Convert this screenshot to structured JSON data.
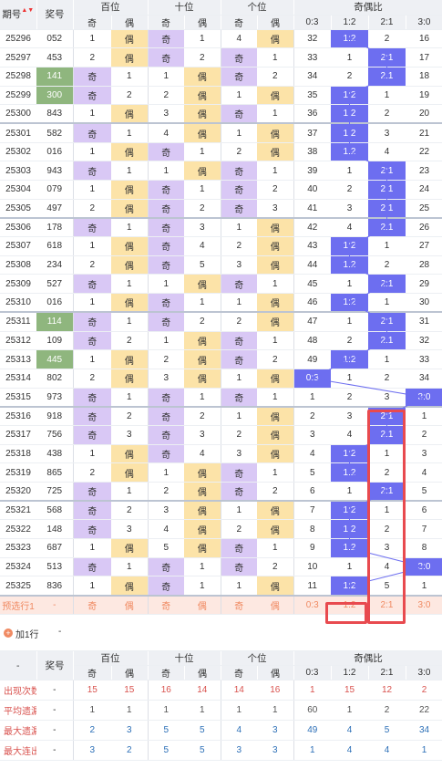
{
  "header": {
    "issue": "期号",
    "number": "奖号",
    "bai": "百位",
    "shi": "十位",
    "ge": "个位",
    "ratio": "奇偶比",
    "ji": "奇",
    "ou": "偶",
    "r0": "0:3",
    "r1": "1:2",
    "r2": "2:1",
    "r3": "3:0"
  },
  "rows": [
    {
      "issue": "25296",
      "num": "052",
      "b": [
        "1",
        "偶"
      ],
      "s": [
        "奇",
        "1"
      ],
      "g": [
        "4",
        "偶"
      ],
      "r": [
        "32",
        "1:2",
        "2",
        "16"
      ],
      "hl": 1,
      "bt": "ou",
      "st": "ji",
      "gt": "ou"
    },
    {
      "issue": "25297",
      "num": "453",
      "b": [
        "2",
        "偶"
      ],
      "s": [
        "奇",
        "2"
      ],
      "g": [
        "奇",
        "1"
      ],
      "r": [
        "33",
        "1",
        "2:1",
        "17"
      ],
      "hl": 2,
      "bt": "ou",
      "st": "ji",
      "gt": "ji"
    },
    {
      "issue": "25298",
      "num": "141",
      "b": [
        "奇",
        "1"
      ],
      "s": [
        "1",
        "偶"
      ],
      "g": [
        "奇",
        "2"
      ],
      "r": [
        "34",
        "2",
        "2:1",
        "18"
      ],
      "hl": 2,
      "bt": "ji",
      "st": "ou",
      "gt": "ji",
      "green": true
    },
    {
      "issue": "25299",
      "num": "300",
      "b": [
        "奇",
        "2"
      ],
      "s": [
        "2",
        "偶"
      ],
      "g": [
        "1",
        "偶"
      ],
      "r": [
        "35",
        "1:2",
        "1",
        "19"
      ],
      "hl": 1,
      "bt": "ji",
      "st": "ou",
      "gt": "ou",
      "green": true
    },
    {
      "issue": "25300",
      "num": "843",
      "b": [
        "1",
        "偶"
      ],
      "s": [
        "3",
        "偶"
      ],
      "g": [
        "奇",
        "1"
      ],
      "r": [
        "36",
        "1:2",
        "2",
        "20"
      ],
      "hl": 1,
      "bt": "ou",
      "st": "ou",
      "gt": "ji"
    },
    {
      "issue": "25301",
      "num": "582",
      "b": [
        "奇",
        "1"
      ],
      "s": [
        "4",
        "偶"
      ],
      "g": [
        "1",
        "偶"
      ],
      "r": [
        "37",
        "1:2",
        "3",
        "21"
      ],
      "hl": 1,
      "bt": "ji",
      "st": "ou",
      "gt": "ou"
    },
    {
      "issue": "25302",
      "num": "016",
      "b": [
        "1",
        "偶"
      ],
      "s": [
        "奇",
        "1"
      ],
      "g": [
        "2",
        "偶"
      ],
      "r": [
        "38",
        "1:2",
        "4",
        "22"
      ],
      "hl": 1,
      "bt": "ou",
      "st": "ji",
      "gt": "ou"
    },
    {
      "issue": "25303",
      "num": "943",
      "b": [
        "奇",
        "1"
      ],
      "s": [
        "1",
        "偶"
      ],
      "g": [
        "奇",
        "1"
      ],
      "r": [
        "39",
        "1",
        "2:1",
        "23"
      ],
      "hl": 2,
      "bt": "ji",
      "st": "ou",
      "gt": "ji"
    },
    {
      "issue": "25304",
      "num": "079",
      "b": [
        "1",
        "偶"
      ],
      "s": [
        "奇",
        "1"
      ],
      "g": [
        "奇",
        "2"
      ],
      "r": [
        "40",
        "2",
        "2:1",
        "24"
      ],
      "hl": 2,
      "bt": "ou",
      "st": "ji",
      "gt": "ji"
    },
    {
      "issue": "25305",
      "num": "497",
      "b": [
        "2",
        "偶"
      ],
      "s": [
        "奇",
        "2"
      ],
      "g": [
        "奇",
        "3"
      ],
      "r": [
        "41",
        "3",
        "2:1",
        "25"
      ],
      "hl": 2,
      "bt": "ou",
      "st": "ji",
      "gt": "ji"
    },
    {
      "issue": "25306",
      "num": "178",
      "b": [
        "奇",
        "1"
      ],
      "s": [
        "奇",
        "3"
      ],
      "g": [
        "1",
        "偶"
      ],
      "r": [
        "42",
        "4",
        "2:1",
        "26"
      ],
      "hl": 2,
      "bt": "ji",
      "st": "ji",
      "gt": "ou"
    },
    {
      "issue": "25307",
      "num": "618",
      "b": [
        "1",
        "偶"
      ],
      "s": [
        "奇",
        "4"
      ],
      "g": [
        "2",
        "偶"
      ],
      "r": [
        "43",
        "1:2",
        "1",
        "27"
      ],
      "hl": 1,
      "bt": "ou",
      "st": "ji",
      "gt": "ou"
    },
    {
      "issue": "25308",
      "num": "234",
      "b": [
        "2",
        "偶"
      ],
      "s": [
        "奇",
        "5"
      ],
      "g": [
        "3",
        "偶"
      ],
      "r": [
        "44",
        "1:2",
        "2",
        "28"
      ],
      "hl": 1,
      "bt": "ou",
      "st": "ji",
      "gt": "ou"
    },
    {
      "issue": "25309",
      "num": "527",
      "b": [
        "奇",
        "1"
      ],
      "s": [
        "1",
        "偶"
      ],
      "g": [
        "奇",
        "1"
      ],
      "r": [
        "45",
        "1",
        "2:1",
        "29"
      ],
      "hl": 2,
      "bt": "ji",
      "st": "ou",
      "gt": "ji"
    },
    {
      "issue": "25310",
      "num": "016",
      "b": [
        "1",
        "偶"
      ],
      "s": [
        "奇",
        "1"
      ],
      "g": [
        "1",
        "偶"
      ],
      "r": [
        "46",
        "1:2",
        "1",
        "30"
      ],
      "hl": 1,
      "bt": "ou",
      "st": "ji",
      "gt": "ou"
    },
    {
      "issue": "25311",
      "num": "114",
      "b": [
        "奇",
        "1"
      ],
      "s": [
        "奇",
        "2"
      ],
      "g": [
        "2",
        "偶"
      ],
      "r": [
        "47",
        "1",
        "2:1",
        "31"
      ],
      "hl": 2,
      "bt": "ji",
      "st": "ji",
      "gt": "ou",
      "green": true
    },
    {
      "issue": "25312",
      "num": "109",
      "b": [
        "奇",
        "2"
      ],
      "s": [
        "1",
        "偶"
      ],
      "g": [
        "奇",
        "1"
      ],
      "r": [
        "48",
        "2",
        "2:1",
        "32"
      ],
      "hl": 2,
      "bt": "ji",
      "st": "ou",
      "gt": "ji"
    },
    {
      "issue": "25313",
      "num": "445",
      "b": [
        "1",
        "偶"
      ],
      "s": [
        "2",
        "偶"
      ],
      "g": [
        "奇",
        "2"
      ],
      "r": [
        "49",
        "1:2",
        "1",
        "33"
      ],
      "hl": 1,
      "bt": "ou",
      "st": "ou",
      "gt": "ji",
      "green": true
    },
    {
      "issue": "25314",
      "num": "802",
      "b": [
        "2",
        "偶"
      ],
      "s": [
        "3",
        "偶"
      ],
      "g": [
        "1",
        "偶"
      ],
      "r": [
        "0:3",
        "1",
        "2",
        "34"
      ],
      "hl": 0,
      "bt": "ou",
      "st": "ou",
      "gt": "ou"
    },
    {
      "issue": "25315",
      "num": "973",
      "b": [
        "奇",
        "1"
      ],
      "s": [
        "奇",
        "1"
      ],
      "g": [
        "奇",
        "1"
      ],
      "r": [
        "1",
        "2",
        "3",
        "3:0"
      ],
      "hl": 3,
      "bt": "ji",
      "st": "ji",
      "gt": "ji"
    },
    {
      "issue": "25316",
      "num": "918",
      "b": [
        "奇",
        "2"
      ],
      "s": [
        "奇",
        "2"
      ],
      "g": [
        "1",
        "偶"
      ],
      "r": [
        "2",
        "3",
        "2:1",
        "1"
      ],
      "hl": 2,
      "bt": "ji",
      "st": "ji",
      "gt": "ou"
    },
    {
      "issue": "25317",
      "num": "756",
      "b": [
        "奇",
        "3"
      ],
      "s": [
        "奇",
        "3"
      ],
      "g": [
        "2",
        "偶"
      ],
      "r": [
        "3",
        "4",
        "2:1",
        "2"
      ],
      "hl": 2,
      "bt": "ji",
      "st": "ji",
      "gt": "ou"
    },
    {
      "issue": "25318",
      "num": "438",
      "b": [
        "1",
        "偶"
      ],
      "s": [
        "奇",
        "4"
      ],
      "g": [
        "3",
        "偶"
      ],
      "r": [
        "4",
        "1:2",
        "1",
        "3"
      ],
      "hl": 1,
      "bt": "ou",
      "st": "ji",
      "gt": "ou"
    },
    {
      "issue": "25319",
      "num": "865",
      "b": [
        "2",
        "偶"
      ],
      "s": [
        "1",
        "偶"
      ],
      "g": [
        "奇",
        "1"
      ],
      "r": [
        "5",
        "1:2",
        "2",
        "4"
      ],
      "hl": 1,
      "bt": "ou",
      "st": "ou",
      "gt": "ji"
    },
    {
      "issue": "25320",
      "num": "725",
      "b": [
        "奇",
        "1"
      ],
      "s": [
        "2",
        "偶"
      ],
      "g": [
        "奇",
        "2"
      ],
      "r": [
        "6",
        "1",
        "2:1",
        "5"
      ],
      "hl": 2,
      "bt": "ji",
      "st": "ou",
      "gt": "ji"
    },
    {
      "issue": "25321",
      "num": "568",
      "b": [
        "奇",
        "2"
      ],
      "s": [
        "3",
        "偶"
      ],
      "g": [
        "1",
        "偶"
      ],
      "r": [
        "7",
        "1:2",
        "1",
        "6"
      ],
      "hl": 1,
      "bt": "ji",
      "st": "ou",
      "gt": "ou"
    },
    {
      "issue": "25322",
      "num": "148",
      "b": [
        "奇",
        "3"
      ],
      "s": [
        "4",
        "偶"
      ],
      "g": [
        "2",
        "偶"
      ],
      "r": [
        "8",
        "1:2",
        "2",
        "7"
      ],
      "hl": 1,
      "bt": "ji",
      "st": "ou",
      "gt": "ou"
    },
    {
      "issue": "25323",
      "num": "687",
      "b": [
        "1",
        "偶"
      ],
      "s": [
        "5",
        "偶"
      ],
      "g": [
        "奇",
        "1"
      ],
      "r": [
        "9",
        "1:2",
        "3",
        "8"
      ],
      "hl": 1,
      "bt": "ou",
      "st": "ou",
      "gt": "ji"
    },
    {
      "issue": "25324",
      "num": "513",
      "b": [
        "奇",
        "1"
      ],
      "s": [
        "奇",
        "1"
      ],
      "g": [
        "奇",
        "2"
      ],
      "r": [
        "10",
        "1",
        "4",
        "3:0"
      ],
      "hl": 3,
      "bt": "ji",
      "st": "ji",
      "gt": "ji"
    },
    {
      "issue": "25325",
      "num": "836",
      "b": [
        "1",
        "偶"
      ],
      "s": [
        "奇",
        "1"
      ],
      "g": [
        "1",
        "偶"
      ],
      "r": [
        "11",
        "1:2",
        "5",
        "1"
      ],
      "hl": 1,
      "bt": "ou",
      "st": "ji",
      "gt": "ou"
    }
  ],
  "preselect": {
    "label": "预选行1",
    "num": "-",
    "cells": [
      "奇",
      "偶",
      "奇",
      "偶",
      "奇",
      "偶",
      "0:3",
      "1:2",
      "2:1",
      "3:0"
    ]
  },
  "addrow": {
    "label": "加1行",
    "dash": "-"
  },
  "stats": {
    "dash": "-",
    "rows": [
      {
        "label": "出现次数",
        "num": "-",
        "vals": [
          "15",
          "15",
          "16",
          "14",
          "14",
          "16",
          "1",
          "15",
          "12",
          "2"
        ]
      },
      {
        "label": "平均遗漏",
        "num": "-",
        "vals": [
          "1",
          "1",
          "1",
          "1",
          "1",
          "1",
          "60",
          "1",
          "2",
          "22"
        ]
      },
      {
        "label": "最大遗漏",
        "num": "-",
        "vals": [
          "2",
          "3",
          "5",
          "5",
          "4",
          "3",
          "49",
          "4",
          "5",
          "34"
        ]
      },
      {
        "label": "最大连出",
        "num": "-",
        "vals": [
          "3",
          "2",
          "5",
          "5",
          "3",
          "3",
          "1",
          "4",
          "4",
          "1"
        ]
      }
    ]
  }
}
